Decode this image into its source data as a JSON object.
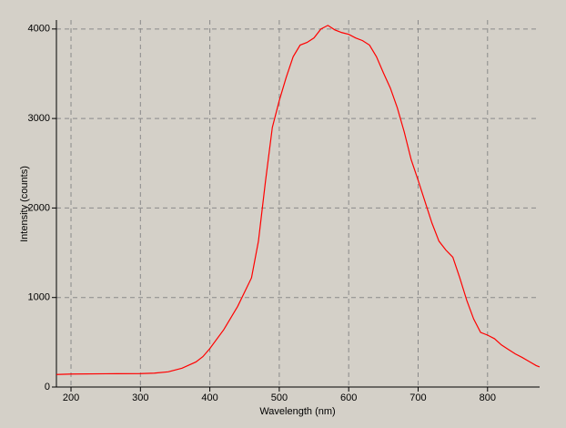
{
  "chart_data": {
    "type": "line",
    "x_label": "Wavelength (nm)",
    "y_label": "Intensity (counts)",
    "x": [
      179,
      200,
      250,
      300,
      320,
      340,
      360,
      380,
      390,
      400,
      420,
      440,
      460,
      470,
      480,
      490,
      500,
      510,
      520,
      530,
      540,
      550,
      560,
      570,
      580,
      590,
      600,
      610,
      620,
      630,
      640,
      650,
      660,
      670,
      680,
      690,
      700,
      710,
      720,
      730,
      740,
      750,
      760,
      770,
      780,
      790,
      800,
      810,
      820,
      830,
      840,
      850,
      860,
      870,
      875
    ],
    "series": [
      {
        "name": "Intensity",
        "color": "#ff0000",
        "values": [
          140,
          145,
          148,
          150,
          155,
          170,
          210,
          280,
          340,
          430,
          640,
          900,
          1220,
          1630,
          2290,
          2900,
          3200,
          3460,
          3690,
          3820,
          3850,
          3900,
          4000,
          4040,
          3990,
          3960,
          3940,
          3900,
          3870,
          3820,
          3690,
          3510,
          3340,
          3120,
          2850,
          2540,
          2310,
          2070,
          1830,
          1630,
          1530,
          1450,
          1220,
          970,
          760,
          610,
          580,
          540,
          470,
          420,
          370,
          330,
          285,
          240,
          225
        ]
      }
    ],
    "xlim": [
      179,
      875
    ],
    "ylim": [
      0,
      4100
    ],
    "xticks": [
      200,
      300,
      400,
      500,
      600,
      700,
      800
    ],
    "yticks": [
      0,
      1000,
      2000,
      3000,
      4000
    ],
    "grid": true
  }
}
